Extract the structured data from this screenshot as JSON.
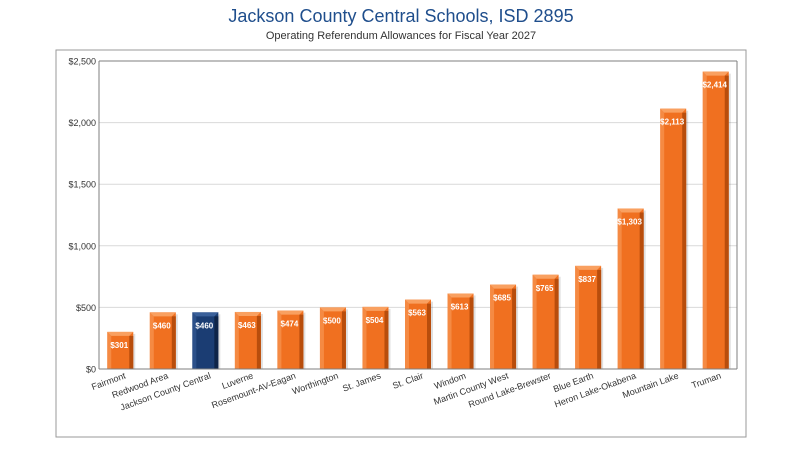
{
  "chart_data": {
    "type": "bar",
    "title": "Jackson County Central Schools, ISD 2895",
    "subtitle": "Operating Referendum Allowances for Fiscal Year 2027",
    "categories": [
      "Fairmont",
      "Redwood Area",
      "Jackson County Central",
      "Luverne",
      "Rosemount-AV-Eagan",
      "Worthington",
      "St. James",
      "St. Clair",
      "Windom",
      "Martin County West",
      "Round Lake-Brewster",
      "Blue Earth",
      "Heron Lake-Okabena",
      "Mountain Lake",
      "Truman"
    ],
    "values": [
      301,
      460,
      460,
      463,
      474,
      500,
      504,
      563,
      613,
      685,
      765,
      837,
      1303,
      2113,
      2414
    ],
    "data_labels": [
      "$301",
      "$460",
      "$460",
      "$463",
      "$474",
      "$500",
      "$504",
      "$563",
      "$613",
      "$685",
      "$765",
      "$837",
      "$1,303",
      "$2,113",
      "$2,414"
    ],
    "y_ticks": [
      0,
      500,
      1000,
      1500,
      2000,
      2500
    ],
    "y_tick_labels": [
      "$0",
      "$500",
      "$1,000",
      "$1,500",
      "$2,000",
      "$2,500"
    ],
    "ylim": [
      0,
      2500
    ],
    "xlabel": "",
    "ylabel": "",
    "grid": true,
    "legend": "none",
    "highlight_index": 2,
    "colors": {
      "bar": "#f07020",
      "bar_dark": "#b84d0c",
      "bar_top": "#f9a060",
      "highlight": "#1b3d73",
      "highlight_dark": "#0e2448",
      "highlight_top": "#3a609a",
      "title": "#1f4e8c",
      "grid": "#d9d9d9",
      "frame": "#888888"
    }
  }
}
